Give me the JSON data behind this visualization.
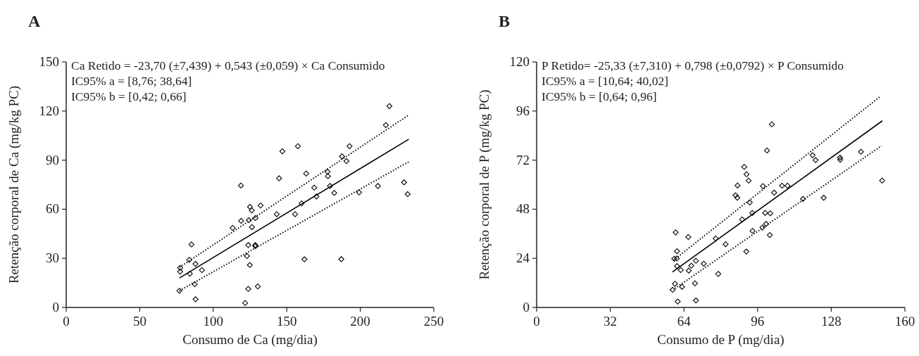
{
  "chart_data": [
    {
      "type": "scatter",
      "title": "A",
      "xlabel": "Consumo de Ca (mg/dia)",
      "ylabel": "Retenção corporal de Ca (mg/kg PC)",
      "xlim": [
        0,
        250
      ],
      "xticks": [
        0,
        50,
        100,
        150,
        200,
        250
      ],
      "ylim": [
        0,
        150
      ],
      "yticks": [
        0,
        30,
        60,
        90,
        120,
        150
      ],
      "grid": false,
      "annotations": [
        "Ca Retido = -23,70 (±7,439) + 0,543 (±0,059) × Ca Consumido",
        "IC95% a = [8,76; 38,64]",
        "IC95% b = [0,42; 0,66]"
      ],
      "series": [
        {
          "color": "#000000",
          "marker": "diamond",
          "x": [
            77.5,
            77.5,
            77,
            83.7,
            85.2,
            84.1,
            87.4,
            88,
            87.9,
            92.3,
            113.2,
            118.8,
            119,
            121.7,
            123,
            123.8,
            124.2,
            124.9,
            123.8,
            125,
            126.2,
            126.3,
            128.7,
            128.6,
            128.6,
            130.3,
            132.2,
            143.2,
            147,
            144.8,
            157.6,
            160.1,
            162,
            163.2,
            168.7,
            170.2,
            155.7,
            177.7,
            178,
            179.4,
            182.3,
            187.1,
            187.6,
            190.6,
            192.7,
            199.2,
            212,
            217.4,
            219.8,
            229.8,
            232.2
          ],
          "values": [
            24.2,
            21.9,
            10.2,
            29.1,
            38.5,
            20.6,
            14.2,
            5,
            26.6,
            22.8,
            48.6,
            74.5,
            52.9,
            2.7,
            31.4,
            11.3,
            53.3,
            25.9,
            38.1,
            61.5,
            59.3,
            49.1,
            54.6,
            38.1,
            37.4,
            12.8,
            62.3,
            57,
            95.4,
            78.9,
            98.5,
            63.6,
            29.4,
            81.8,
            73.2,
            67.8,
            57,
            82.9,
            80.2,
            74.2,
            70,
            29.5,
            92.3,
            89.4,
            98.5,
            70.3,
            74.2,
            111.4,
            123,
            76.4,
            69.2
          ]
        },
        {
          "type": "line",
          "color": "#000000",
          "line_style": "solid",
          "x": [
            77,
            233
          ],
          "values": [
            18,
            102.8
          ]
        },
        {
          "type": "line",
          "color": "#000000",
          "line_style": "dotted",
          "x": [
            77,
            233
          ],
          "values": [
            24.5,
            117.6
          ]
        },
        {
          "type": "line",
          "color": "#000000",
          "line_style": "dotted",
          "x": [
            77,
            233
          ],
          "values": [
            10.2,
            89
          ]
        }
      ]
    },
    {
      "type": "scatter",
      "title": "B",
      "xlabel": "Consumo de P (mg/dia)",
      "ylabel": "Retenção corporal de P (mg/kg PC)",
      "xlim": [
        0,
        160
      ],
      "xticks": [
        0,
        32,
        64,
        96,
        128,
        160
      ],
      "ylim": [
        0,
        120
      ],
      "yticks": [
        0,
        24,
        48,
        72,
        96,
        120
      ],
      "grid": false,
      "annotations": [
        "P Retido= -25,33 (±7,310) + 0,798 (±0,0792) × P Consumido",
        "IC95% a = [10,64; 40,02]",
        "IC95% b = [0,64; 0,96]"
      ],
      "series": [
        {
          "color": "#000000",
          "marker": "diamond",
          "x": [
            60.4,
            65.9,
            61,
            59.8,
            60.9,
            61,
            62.6,
            60.1,
            59.1,
            63.2,
            61.3,
            69.2,
            68.8,
            66.1,
            67.2,
            69.2,
            72.6,
            78.9,
            77.8,
            82.1,
            91.1,
            89.3,
            90.2,
            91.2,
            92.1,
            87.3,
            86.4,
            87.2,
            92.6,
            93.7,
            93.8,
            98.1,
            99.7,
            101.3,
            99.3,
            101.5,
            98.3,
            100.1,
            102.2,
            103.2,
            106.6,
            109,
            115.7,
            119.9,
            121.2,
            124.7,
            131.8,
            131.9,
            140.9,
            150.1
          ],
          "values": [
            36.7,
            34.4,
            27.5,
            23.8,
            23.9,
            20.2,
            18.3,
            11.6,
            8.6,
            10.1,
            2.9,
            3.4,
            11.8,
            18,
            20.4,
            22.8,
            21.4,
            16.4,
            33.7,
            30.9,
            27.3,
            43,
            68.7,
            65.1,
            62,
            59.6,
            54.8,
            53.6,
            51.3,
            46.2,
            37.4,
            39.1,
            40.8,
            35.4,
            46.2,
            46,
            59.3,
            76.7,
            89.5,
            56.1,
            59.5,
            59.5,
            53,
            74.4,
            72,
            53.6,
            73.2,
            72.2,
            76.1,
            62
          ]
        },
        {
          "type": "line",
          "color": "#000000",
          "line_style": "solid",
          "x": [
            59,
            150.2
          ],
          "values": [
            17.3,
            91.2
          ]
        },
        {
          "type": "line",
          "color": "#000000",
          "line_style": "dotted",
          "x": [
            59.4,
            149.5
          ],
          "values": [
            23,
            103.3
          ]
        },
        {
          "type": "line",
          "color": "#000000",
          "line_style": "dotted",
          "x": [
            60.1,
            149.8
          ],
          "values": [
            9.3,
            79
          ]
        }
      ]
    }
  ]
}
